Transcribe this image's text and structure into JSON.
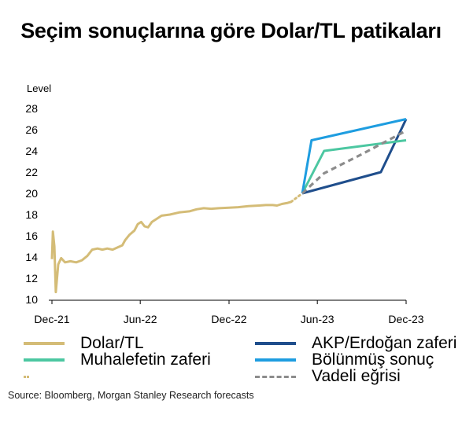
{
  "title": "Seçim sonuçlarına göre Dolar/TL patikaları",
  "source": "Source: Bloomberg, Morgan Stanley Research forecasts",
  "chart_data": {
    "type": "line",
    "ylabel": "Level",
    "ylim": [
      10,
      28
    ],
    "yticks": [
      10,
      12,
      14,
      16,
      18,
      20,
      22,
      24,
      26,
      28
    ],
    "xlim": [
      "2021-12-01",
      "2023-12-01"
    ],
    "xticks": [
      {
        "x": "2021-12-01",
        "label": "Dec-21"
      },
      {
        "x": "2022-06-01",
        "label": "Jun-22"
      },
      {
        "x": "2022-12-01",
        "label": "Dec-22"
      },
      {
        "x": "2023-06-01",
        "label": "Jun-23"
      },
      {
        "x": "2023-12-01",
        "label": "Dec-23"
      }
    ],
    "grid": false,
    "legend_position": "bottom",
    "series": [
      {
        "name": "Dolar/TL",
        "color": "#D4BC77",
        "style": "solid",
        "points": [
          [
            "2021-12-01",
            13.8
          ],
          [
            "2021-12-03",
            16.4
          ],
          [
            "2021-12-06",
            15.0
          ],
          [
            "2021-12-09",
            10.7
          ],
          [
            "2021-12-14",
            13.3
          ],
          [
            "2021-12-20",
            13.9
          ],
          [
            "2021-12-28",
            13.5
          ],
          [
            "2022-01-08",
            13.6
          ],
          [
            "2022-01-20",
            13.5
          ],
          [
            "2022-02-01",
            13.7
          ],
          [
            "2022-02-12",
            14.1
          ],
          [
            "2022-02-22",
            14.7
          ],
          [
            "2022-03-05",
            14.8
          ],
          [
            "2022-03-15",
            14.7
          ],
          [
            "2022-03-25",
            14.8
          ],
          [
            "2022-04-05",
            14.7
          ],
          [
            "2022-04-15",
            14.9
          ],
          [
            "2022-04-25",
            15.1
          ],
          [
            "2022-05-01",
            15.6
          ],
          [
            "2022-05-10",
            16.1
          ],
          [
            "2022-05-20",
            16.5
          ],
          [
            "2022-05-27",
            17.1
          ],
          [
            "2022-06-03",
            17.3
          ],
          [
            "2022-06-10",
            16.9
          ],
          [
            "2022-06-17",
            16.8
          ],
          [
            "2022-06-25",
            17.3
          ],
          [
            "2022-07-05",
            17.6
          ],
          [
            "2022-07-15",
            17.9
          ],
          [
            "2022-08-01",
            18.0
          ],
          [
            "2022-08-20",
            18.2
          ],
          [
            "2022-09-10",
            18.3
          ],
          [
            "2022-09-25",
            18.5
          ],
          [
            "2022-10-10",
            18.6
          ],
          [
            "2022-10-25",
            18.55
          ],
          [
            "2022-11-10",
            18.6
          ],
          [
            "2022-12-01",
            18.65
          ],
          [
            "2022-12-20",
            18.7
          ],
          [
            "2023-01-10",
            18.8
          ],
          [
            "2023-02-01",
            18.85
          ],
          [
            "2023-02-15",
            18.9
          ],
          [
            "2023-03-01",
            18.9
          ],
          [
            "2023-03-10",
            18.85
          ],
          [
            "2023-03-20",
            19.0
          ],
          [
            "2023-04-01",
            19.1
          ],
          [
            "2023-04-08",
            19.2
          ]
        ]
      },
      {
        "name": "",
        "color": "#D4BC77",
        "style": "dotted",
        "points": [
          [
            "2023-04-08",
            19.2
          ],
          [
            "2023-05-01",
            20.0
          ]
        ]
      },
      {
        "name": "AKP/Erdoğan zaferi",
        "color": "#1F4E8C",
        "style": "solid",
        "points": [
          [
            "2023-05-01",
            20.0
          ],
          [
            "2023-10-10",
            22.0
          ],
          [
            "2023-12-01",
            27.0
          ]
        ]
      },
      {
        "name": "Muhalefetin zaferi",
        "color": "#4CC7A1",
        "style": "solid",
        "points": [
          [
            "2023-05-01",
            20.0
          ],
          [
            "2023-06-15",
            24.0
          ],
          [
            "2023-12-01",
            25.0
          ]
        ]
      },
      {
        "name": "Bölünmüş sonuç",
        "color": "#1E9DE0",
        "style": "solid",
        "points": [
          [
            "2023-05-01",
            20.0
          ],
          [
            "2023-05-20",
            25.0
          ],
          [
            "2023-12-01",
            27.0
          ]
        ]
      },
      {
        "name": "Vadeli eğrisi",
        "color": "#8C8C8C",
        "style": "dashed",
        "points": [
          [
            "2023-05-01",
            20.0
          ],
          [
            "2023-06-15",
            21.9
          ],
          [
            "2023-09-01",
            23.7
          ],
          [
            "2023-12-01",
            25.9
          ]
        ]
      }
    ],
    "legend": [
      {
        "name": "Dolar/TL",
        "color": "#D4BC77",
        "style": "solid"
      },
      {
        "name": "AKP/Erdoğan zaferi",
        "color": "#1F4E8C",
        "style": "solid"
      },
      {
        "name": "Muhalefetin zaferi",
        "color": "#4CC7A1",
        "style": "solid"
      },
      {
        "name": "Bölünmüş sonuç",
        "color": "#1E9DE0",
        "style": "solid"
      },
      {
        "name": "",
        "color": "#D4BC77",
        "style": "dotted"
      },
      {
        "name": "Vadeli eğrisi",
        "color": "#8C8C8C",
        "style": "dashed"
      }
    ]
  }
}
